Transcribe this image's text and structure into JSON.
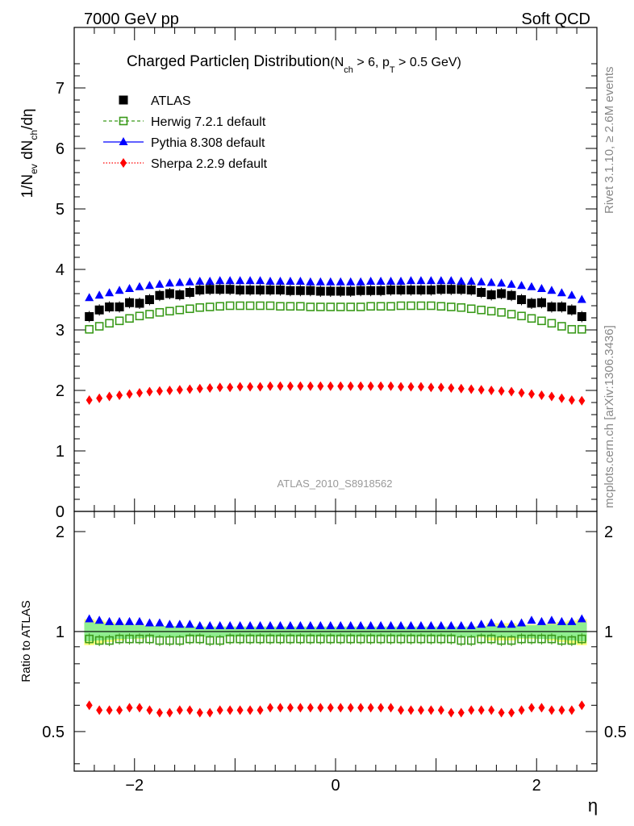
{
  "header": {
    "left": "7000 GeV pp",
    "right": "Soft QCD"
  },
  "side_labels": {
    "rivet": "Rivet 3.1.10, ≥ 2.6M events",
    "mcplots": "mcplots.cern.ch [arXiv:1306.3436]"
  },
  "chart_data": [
    {
      "type": "scatter",
      "title_main": "Charged Particleη Distribution",
      "title_sub": "(N_ch > 6, p_T > 0.5 GeV)",
      "title_sub_parts": {
        "open": "(N",
        "ch": "ch",
        "mid": " > 6, p",
        "t": "T",
        "close": " > 0.5 GeV)"
      },
      "ylabel_parts": {
        "a": "1/N",
        "ev": "ev",
        "b": " dN",
        "ch": "ch",
        "c": "/dη"
      },
      "watermark": "ATLAS_2010_S8918562",
      "xlim": [
        -2.6,
        2.6
      ],
      "ylim": [
        0,
        8
      ],
      "yticks": [
        "0",
        "1",
        "2",
        "3",
        "4",
        "5",
        "6",
        "7"
      ],
      "legend_position": "top-left",
      "x": [
        -2.45,
        -2.35,
        -2.25,
        -2.15,
        -2.05,
        -1.95,
        -1.85,
        -1.75,
        -1.65,
        -1.55,
        -1.45,
        -1.35,
        -1.25,
        -1.15,
        -1.05,
        -0.95,
        -0.85,
        -0.75,
        -0.65,
        -0.55,
        -0.45,
        -0.35,
        -0.25,
        -0.15,
        -0.05,
        0.05,
        0.15,
        0.25,
        0.35,
        0.45,
        0.55,
        0.65,
        0.75,
        0.85,
        0.95,
        1.05,
        1.15,
        1.25,
        1.35,
        1.45,
        1.55,
        1.65,
        1.75,
        1.85,
        1.95,
        2.05,
        2.15,
        2.25,
        2.35,
        2.45
      ],
      "series": [
        {
          "name": "ATLAS",
          "color": "#000000",
          "marker": "square",
          "values": [
            3.22,
            3.33,
            3.38,
            3.38,
            3.45,
            3.44,
            3.5,
            3.57,
            3.6,
            3.58,
            3.62,
            3.66,
            3.67,
            3.67,
            3.67,
            3.66,
            3.66,
            3.66,
            3.66,
            3.66,
            3.65,
            3.65,
            3.65,
            3.64,
            3.64,
            3.64,
            3.64,
            3.65,
            3.65,
            3.65,
            3.66,
            3.66,
            3.66,
            3.66,
            3.66,
            3.67,
            3.67,
            3.67,
            3.66,
            3.62,
            3.58,
            3.6,
            3.57,
            3.5,
            3.44,
            3.45,
            3.38,
            3.38,
            3.33,
            3.22
          ]
        },
        {
          "name": "Herwig 7.2.1 default",
          "color": "#3a9a1a",
          "marker": "open-square",
          "line": "dashed",
          "values": [
            3.01,
            3.06,
            3.11,
            3.15,
            3.19,
            3.23,
            3.26,
            3.29,
            3.31,
            3.33,
            3.35,
            3.37,
            3.38,
            3.39,
            3.4,
            3.4,
            3.4,
            3.4,
            3.4,
            3.39,
            3.39,
            3.39,
            3.38,
            3.38,
            3.38,
            3.38,
            3.38,
            3.38,
            3.39,
            3.39,
            3.39,
            3.4,
            3.4,
            3.4,
            3.4,
            3.39,
            3.38,
            3.37,
            3.35,
            3.33,
            3.31,
            3.29,
            3.26,
            3.23,
            3.19,
            3.15,
            3.11,
            3.06,
            3.01,
            3.01
          ]
        },
        {
          "name": "Pythia 8.308 default",
          "color": "#0000ff",
          "marker": "triangle",
          "line": "solid",
          "values": [
            3.53,
            3.57,
            3.61,
            3.65,
            3.68,
            3.71,
            3.73,
            3.75,
            3.77,
            3.78,
            3.79,
            3.8,
            3.8,
            3.81,
            3.81,
            3.81,
            3.81,
            3.81,
            3.8,
            3.8,
            3.8,
            3.8,
            3.79,
            3.79,
            3.79,
            3.79,
            3.79,
            3.79,
            3.8,
            3.8,
            3.8,
            3.8,
            3.81,
            3.81,
            3.81,
            3.81,
            3.81,
            3.8,
            3.8,
            3.79,
            3.78,
            3.77,
            3.75,
            3.73,
            3.71,
            3.68,
            3.65,
            3.61,
            3.57,
            3.5
          ]
        },
        {
          "name": "Sherpa 2.2.9 default",
          "color": "#ff0000",
          "marker": "diamond",
          "line": "dotted",
          "values": [
            1.84,
            1.87,
            1.9,
            1.92,
            1.94,
            1.96,
            1.98,
            1.99,
            2.0,
            2.01,
            2.02,
            2.03,
            2.04,
            2.05,
            2.05,
            2.06,
            2.06,
            2.06,
            2.07,
            2.07,
            2.07,
            2.07,
            2.07,
            2.07,
            2.07,
            2.07,
            2.07,
            2.07,
            2.07,
            2.07,
            2.07,
            2.06,
            2.06,
            2.06,
            2.05,
            2.05,
            2.04,
            2.03,
            2.02,
            2.01,
            2.0,
            1.99,
            1.98,
            1.96,
            1.94,
            1.92,
            1.9,
            1.87,
            1.84,
            1.83
          ]
        }
      ]
    },
    {
      "type": "scatter",
      "ylabel": "Ratio to ATLAS",
      "xlabel": "η",
      "xlim": [
        -2.6,
        2.6
      ],
      "ylim": [
        0.38,
        2.3
      ],
      "xticks": [
        "−2",
        "0",
        "2"
      ],
      "yticks": [
        "0.5",
        "1",
        "2"
      ],
      "band_inner_color": "#90ee90",
      "band_outer_color": "#ffff80",
      "band_inner": [
        0.065,
        0.06,
        0.055,
        0.05,
        0.05,
        0.045,
        0.04,
        0.04,
        0.04,
        0.04,
        0.035,
        0.035,
        0.035,
        0.035,
        0.035,
        0.035,
        0.035,
        0.035,
        0.035,
        0.035,
        0.035,
        0.035,
        0.035,
        0.035,
        0.035,
        0.035,
        0.035,
        0.035,
        0.035,
        0.035,
        0.035,
        0.035,
        0.035,
        0.035,
        0.035,
        0.035,
        0.035,
        0.035,
        0.035,
        0.035,
        0.04,
        0.04,
        0.04,
        0.045,
        0.045,
        0.05,
        0.05,
        0.055,
        0.06,
        0.065
      ],
      "band_outer": [
        0.09,
        0.08,
        0.07,
        0.06,
        0.05,
        0.05,
        0.04,
        0.04,
        0.04,
        0.04,
        0.035,
        0.035,
        0.035,
        0.035,
        0.035,
        0.035,
        0.035,
        0.035,
        0.035,
        0.035,
        0.035,
        0.035,
        0.035,
        0.035,
        0.035,
        0.035,
        0.035,
        0.035,
        0.035,
        0.035,
        0.035,
        0.035,
        0.035,
        0.035,
        0.035,
        0.035,
        0.035,
        0.035,
        0.035,
        0.04,
        0.06,
        0.06,
        0.06,
        0.05,
        0.05,
        0.05,
        0.06,
        0.07,
        0.08,
        0.09
      ],
      "series": [
        {
          "name": "Herwig 7.2.1 default",
          "color": "#3a9a1a",
          "marker": "open-square",
          "values": [
            0.95,
            0.94,
            0.94,
            0.95,
            0.95,
            0.95,
            0.95,
            0.94,
            0.94,
            0.94,
            0.95,
            0.95,
            0.94,
            0.94,
            0.95,
            0.95,
            0.95,
            0.95,
            0.95,
            0.95,
            0.95,
            0.95,
            0.95,
            0.95,
            0.95,
            0.95,
            0.95,
            0.95,
            0.95,
            0.95,
            0.95,
            0.95,
            0.95,
            0.95,
            0.95,
            0.95,
            0.95,
            0.94,
            0.94,
            0.95,
            0.95,
            0.94,
            0.94,
            0.95,
            0.95,
            0.95,
            0.95,
            0.94,
            0.94,
            0.95
          ]
        },
        {
          "name": "Pythia 8.308 default",
          "color": "#0000ff",
          "marker": "triangle",
          "values": [
            1.09,
            1.08,
            1.07,
            1.07,
            1.07,
            1.07,
            1.06,
            1.06,
            1.05,
            1.05,
            1.05,
            1.04,
            1.04,
            1.04,
            1.04,
            1.04,
            1.04,
            1.04,
            1.04,
            1.04,
            1.04,
            1.04,
            1.04,
            1.04,
            1.04,
            1.04,
            1.04,
            1.04,
            1.04,
            1.04,
            1.04,
            1.04,
            1.04,
            1.04,
            1.04,
            1.04,
            1.04,
            1.04,
            1.04,
            1.05,
            1.06,
            1.05,
            1.05,
            1.06,
            1.08,
            1.07,
            1.08,
            1.07,
            1.07,
            1.09
          ]
        },
        {
          "name": "Sherpa 2.2.9 default",
          "color": "#ff0000",
          "marker": "diamond",
          "values": [
            0.6,
            0.58,
            0.58,
            0.58,
            0.59,
            0.59,
            0.58,
            0.57,
            0.57,
            0.58,
            0.58,
            0.57,
            0.57,
            0.58,
            0.58,
            0.58,
            0.58,
            0.58,
            0.59,
            0.59,
            0.59,
            0.59,
            0.59,
            0.59,
            0.59,
            0.59,
            0.59,
            0.59,
            0.59,
            0.59,
            0.59,
            0.58,
            0.58,
            0.58,
            0.58,
            0.58,
            0.57,
            0.57,
            0.58,
            0.58,
            0.58,
            0.57,
            0.57,
            0.58,
            0.59,
            0.59,
            0.58,
            0.58,
            0.58,
            0.6
          ]
        }
      ]
    }
  ]
}
